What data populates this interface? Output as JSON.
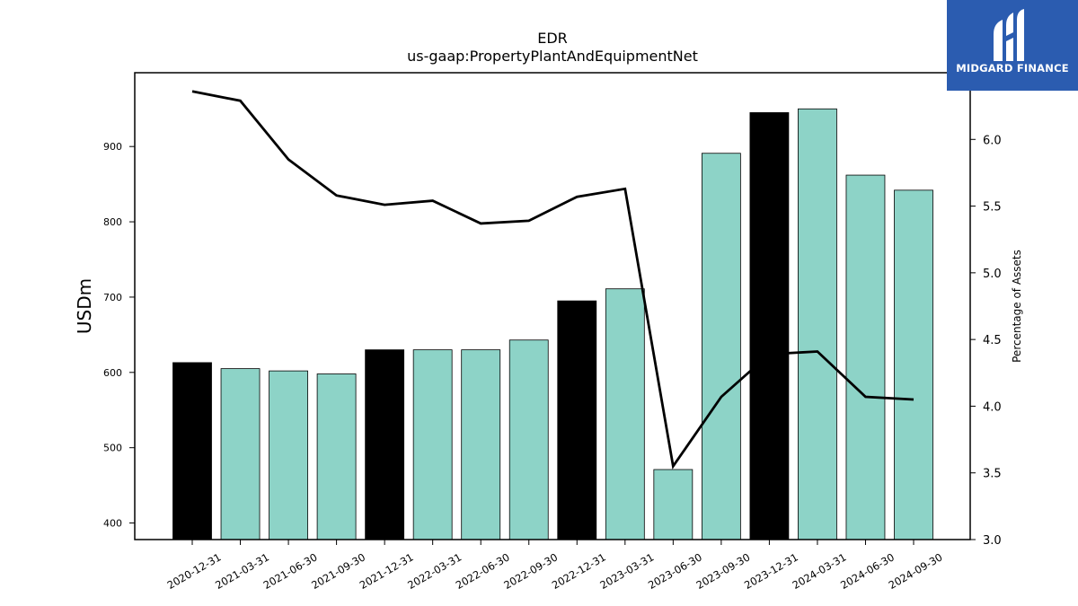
{
  "chart_data": {
    "type": "bar",
    "title": "EDR",
    "subtitle": "us-gaap:PropertyPlantAndEquipmentNet",
    "ylabel": "USDm",
    "y2label": "Percentage of Assets",
    "ylim": [
      378,
      998
    ],
    "y2lim": [
      3.0,
      6.5
    ],
    "yticks": [
      400,
      500,
      600,
      700,
      800,
      900
    ],
    "y2ticks": [
      "3.0",
      "3.5",
      "4.0",
      "4.5",
      "5.0",
      "5.5",
      "6.0"
    ],
    "categories": [
      "2020-12-31",
      "2021-03-31",
      "2021-06-30",
      "2021-09-30",
      "2021-12-31",
      "2022-03-31",
      "2022-06-30",
      "2022-09-30",
      "2022-12-31",
      "2023-03-31",
      "2023-06-30",
      "2023-09-30",
      "2023-12-31",
      "2024-03-31",
      "2024-06-30",
      "2024-09-30"
    ],
    "values": [
      613,
      605,
      602,
      598,
      630,
      630,
      630,
      643,
      695,
      711,
      471,
      891,
      945,
      950,
      862,
      842
    ],
    "highlight": [
      true,
      false,
      false,
      false,
      true,
      false,
      false,
      false,
      true,
      false,
      false,
      false,
      true,
      false,
      false,
      false
    ],
    "line_values": [
      6.36,
      6.29,
      5.85,
      5.58,
      5.51,
      5.54,
      5.37,
      5.39,
      5.57,
      5.63,
      3.55,
      4.07,
      4.39,
      4.41,
      4.07,
      4.05
    ],
    "colors": {
      "bar": "#8dd3c7",
      "bar_highlight": "#000000",
      "line": "#000000"
    }
  },
  "logo": {
    "text": "MIDGARD FINANCE",
    "color": "#2b5cb0"
  }
}
